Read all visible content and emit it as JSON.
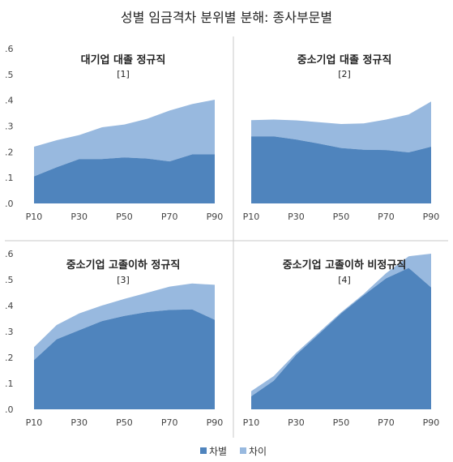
{
  "title": "성별 임금격차  분위별  분해: 종사부문별",
  "legend": [
    {
      "label": "차별",
      "color": "#4f84bd"
    },
    {
      "label": "차이",
      "color": "#98b9df"
    }
  ],
  "colors": {
    "discrimination": "#4f84bd",
    "difference": "#98b9df",
    "divider": "#c8c8c8"
  },
  "chart_data": [
    {
      "type": "area",
      "title": "대기업 대졸 정규직",
      "label": "[1]",
      "x": [
        "P10",
        "P20",
        "P30",
        "P40",
        "P50",
        "P60",
        "P70",
        "P80",
        "P90"
      ],
      "xticks": [
        "P10",
        "P30",
        "P50",
        "P70",
        "P90"
      ],
      "yticks": [
        ".0",
        ".1",
        ".2",
        ".3",
        ".4",
        ".5",
        ".6"
      ],
      "ylim": [
        0,
        0.6
      ],
      "series": [
        {
          "name": "차별",
          "values": [
            0.105,
            0.14,
            0.172,
            0.172,
            0.178,
            0.174,
            0.163,
            0.19,
            0.19
          ]
        },
        {
          "name": "차이",
          "values": [
            0.115,
            0.105,
            0.093,
            0.123,
            0.128,
            0.154,
            0.197,
            0.195,
            0.212
          ]
        }
      ]
    },
    {
      "type": "area",
      "title": "중소기업 대졸 정규직",
      "label": "[2]",
      "x": [
        "P10",
        "P20",
        "P30",
        "P40",
        "P50",
        "P60",
        "P70",
        "P80",
        "P90"
      ],
      "xticks": [
        "P10",
        "P30",
        "P50",
        "P70",
        "P90"
      ],
      "yticks": [],
      "ylim": [
        0,
        0.6
      ],
      "series": [
        {
          "name": "차별",
          "values": [
            0.26,
            0.26,
            0.248,
            0.232,
            0.215,
            0.208,
            0.207,
            0.198,
            0.22
          ]
        },
        {
          "name": "차이",
          "values": [
            0.063,
            0.065,
            0.074,
            0.083,
            0.093,
            0.102,
            0.118,
            0.147,
            0.175
          ]
        }
      ]
    },
    {
      "type": "area",
      "title": "중소기업 고졸이하 정규직",
      "label": "[3]",
      "x": [
        "P10",
        "P20",
        "P30",
        "P40",
        "P50",
        "P60",
        "P70",
        "P80",
        "P90"
      ],
      "xticks": [
        "P10",
        "P30",
        "P50",
        "P70",
        "P90"
      ],
      "yticks": [
        ".0",
        ".1",
        ".2",
        ".3",
        ".4",
        ".5",
        ".6"
      ],
      "ylim": [
        0,
        0.6
      ],
      "series": [
        {
          "name": "차별",
          "values": [
            0.19,
            0.27,
            0.305,
            0.34,
            0.36,
            0.375,
            0.383,
            0.385,
            0.345
          ]
        },
        {
          "name": "차이",
          "values": [
            0.05,
            0.055,
            0.065,
            0.06,
            0.066,
            0.074,
            0.09,
            0.1,
            0.135
          ]
        }
      ]
    },
    {
      "type": "area",
      "title": "중소기업 고졸이하 비정규직",
      "label": "[4]",
      "x": [
        "P10",
        "P20",
        "P30",
        "P40",
        "P50",
        "P60",
        "P70",
        "P80",
        "P90"
      ],
      "xticks": [
        "P10",
        "P30",
        "P50",
        "P70",
        "P90"
      ],
      "yticks": [],
      "ylim": [
        0,
        0.6
      ],
      "series": [
        {
          "name": "차별",
          "values": [
            0.05,
            0.11,
            0.21,
            0.29,
            0.37,
            0.44,
            0.505,
            0.545,
            0.47
          ]
        },
        {
          "name": "차이",
          "values": [
            0.02,
            0.018,
            0.008,
            0.006,
            0.004,
            0.005,
            0.02,
            0.045,
            0.13
          ]
        }
      ]
    }
  ]
}
